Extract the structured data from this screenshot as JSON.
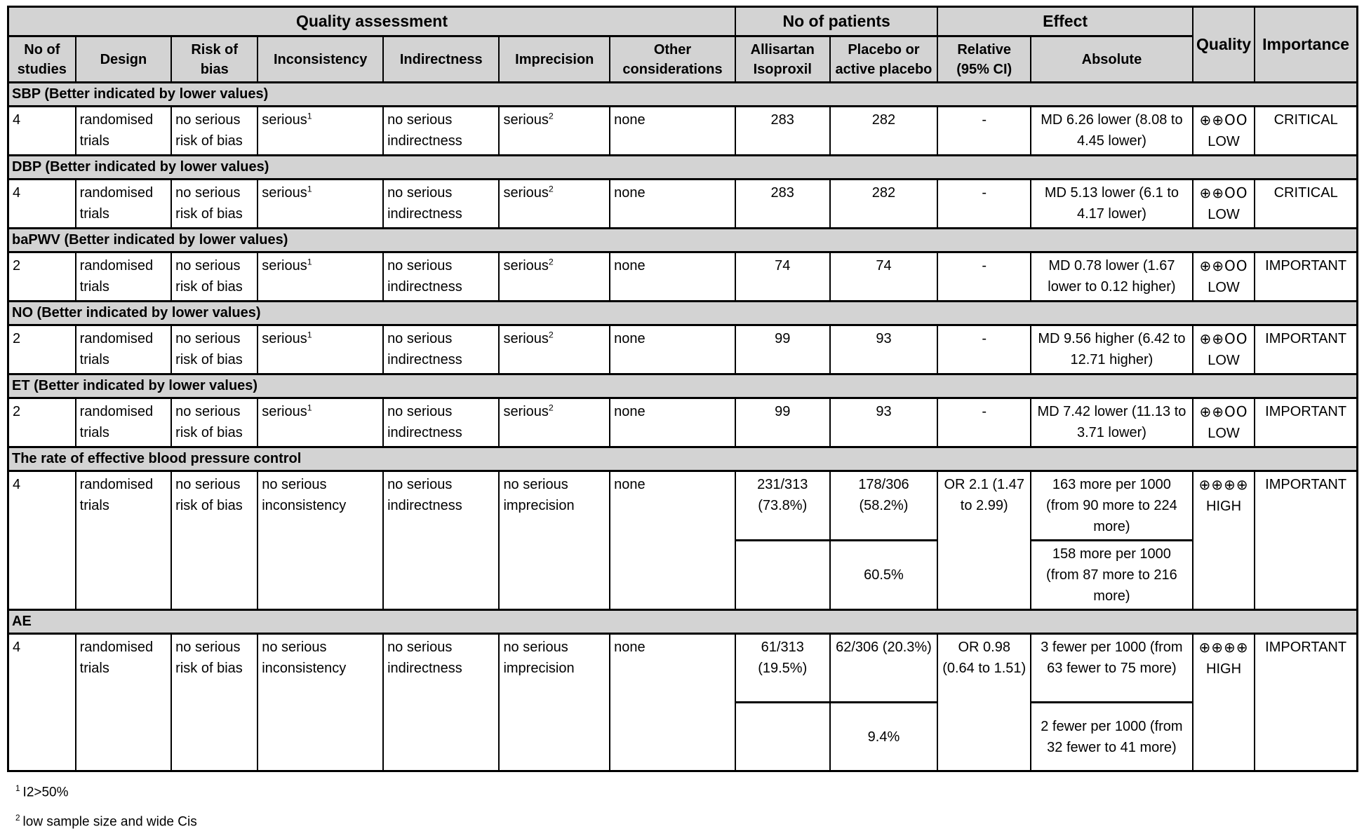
{
  "table": {
    "header": {
      "quality_assessment": "Quality assessment",
      "no_of_patients": "No of patients",
      "effect": "Effect",
      "quality": "Quality",
      "importance": "Importance",
      "columns": {
        "no_of_studies": "No of studies",
        "design": "Design",
        "risk_of_bias": "Risk of bias",
        "inconsistency": "Inconsistency",
        "indirectness": "Indirectness",
        "imprecision": "Imprecision",
        "other_considerations": "Other considerations",
        "treatment": "Allisartan Isoproxil",
        "control": "Placebo or active placebo",
        "relative": "Relative (95% CI)",
        "absolute": "Absolute"
      }
    },
    "sections": [
      {
        "title": "SBP (Better indicated by lower values)",
        "row": {
          "no_of_studies": "4",
          "design": "randomised trials",
          "risk_of_bias": "no serious risk of bias",
          "inconsistency": {
            "text": "serious",
            "sup": "1"
          },
          "indirectness": "no serious indirectness",
          "imprecision": {
            "text": "serious",
            "sup": "2"
          },
          "other_considerations": "none",
          "treatment": "283",
          "control": "282",
          "relative": "-",
          "absolute": "MD 6.26 lower (8.08 to 4.45 lower)",
          "quality_symbols": "⊕⊕OO",
          "quality_label": "LOW",
          "importance": "CRITICAL"
        }
      },
      {
        "title": "DBP (Better indicated by lower values)",
        "row": {
          "no_of_studies": "4",
          "design": "randomised trials",
          "risk_of_bias": "no serious risk of bias",
          "inconsistency": {
            "text": "serious",
            "sup": "1"
          },
          "indirectness": "no serious indirectness",
          "imprecision": {
            "text": "serious",
            "sup": "2"
          },
          "other_considerations": "none",
          "treatment": "283",
          "control": "282",
          "relative": "-",
          "absolute": "MD 5.13 lower (6.1 to 4.17 lower)",
          "quality_symbols": "⊕⊕OO",
          "quality_label": "LOW",
          "importance": "CRITICAL"
        }
      },
      {
        "title": "baPWV (Better indicated by lower values)",
        "row": {
          "no_of_studies": "2",
          "design": "randomised trials",
          "risk_of_bias": "no serious risk of bias",
          "inconsistency": {
            "text": "serious",
            "sup": "1"
          },
          "indirectness": "no serious indirectness",
          "imprecision": {
            "text": "serious",
            "sup": "2"
          },
          "other_considerations": "none",
          "treatment": "74",
          "control": "74",
          "relative": "-",
          "absolute": "MD 0.78 lower (1.67 lower to 0.12 higher)",
          "quality_symbols": "⊕⊕OO",
          "quality_label": "LOW",
          "importance": "IMPORTANT"
        }
      },
      {
        "title": "NO (Better indicated by lower values)",
        "row": {
          "no_of_studies": "2",
          "design": "randomised trials",
          "risk_of_bias": "no serious risk of bias",
          "inconsistency": {
            "text": "serious",
            "sup": "1"
          },
          "indirectness": "no serious indirectness",
          "imprecision": {
            "text": "serious",
            "sup": "2"
          },
          "other_considerations": "none",
          "treatment": "99",
          "control": "93",
          "relative": "-",
          "absolute": "MD 9.56 higher (6.42 to 12.71 higher)",
          "quality_symbols": "⊕⊕OO",
          "quality_label": "LOW",
          "importance": "IMPORTANT"
        }
      },
      {
        "title": "ET (Better indicated by lower values)",
        "row": {
          "no_of_studies": "2",
          "design": "randomised trials",
          "risk_of_bias": "no serious risk of bias",
          "inconsistency": {
            "text": "serious",
            "sup": "1"
          },
          "indirectness": "no serious indirectness",
          "imprecision": {
            "text": "serious",
            "sup": "2"
          },
          "other_considerations": "none",
          "treatment": "99",
          "control": "93",
          "relative": "-",
          "absolute": "MD 7.42 lower (11.13 to 3.71 lower)",
          "quality_symbols": "⊕⊕OO",
          "quality_label": "LOW",
          "importance": "IMPORTANT"
        }
      },
      {
        "title": "The rate of effective blood pressure control",
        "row": {
          "no_of_studies": "4",
          "design": "randomised trials",
          "risk_of_bias": "no serious risk of bias",
          "inconsistency": "no serious inconsistency",
          "indirectness": "no serious indirectness",
          "imprecision": "no serious imprecision",
          "other_considerations": "none",
          "treatment": "231/313 (73.8%)",
          "control": "178/306 (58.2%)",
          "relative": "OR 2.1 (1.47 to 2.99)",
          "absolute": "163 more per 1000 (from 90 more to 224 more)",
          "quality_symbols": "⊕⊕⊕⊕",
          "quality_label": "HIGH",
          "importance": "IMPORTANT"
        },
        "sub": {
          "treatment": "",
          "control": "60.5%",
          "absolute": "158 more per 1000 (from 87 more to 216 more)"
        }
      },
      {
        "title": "AE",
        "row": {
          "no_of_studies": "4",
          "design": "randomised trials",
          "risk_of_bias": "no serious risk of bias",
          "inconsistency": "no serious inconsistency",
          "indirectness": "no serious indirectness",
          "imprecision": "no serious imprecision",
          "other_considerations": "none",
          "treatment": "61/313 (19.5%)",
          "control": "62/306 (20.3%)",
          "relative": "OR 0.98 (0.64 to 1.51)",
          "absolute": "3 fewer per 1000 (from 63 fewer to 75 more)",
          "quality_symbols": "⊕⊕⊕⊕",
          "quality_label": "HIGH",
          "importance": "IMPORTANT"
        },
        "sub": {
          "treatment": "",
          "control": "9.4%",
          "absolute": "2 fewer per 1000 (from 32 fewer to 41 more)"
        }
      }
    ],
    "footnotes": [
      {
        "sup": "1",
        "text": "I2>50%"
      },
      {
        "sup": "2",
        "text": "low sample size and wide Cis"
      }
    ]
  }
}
